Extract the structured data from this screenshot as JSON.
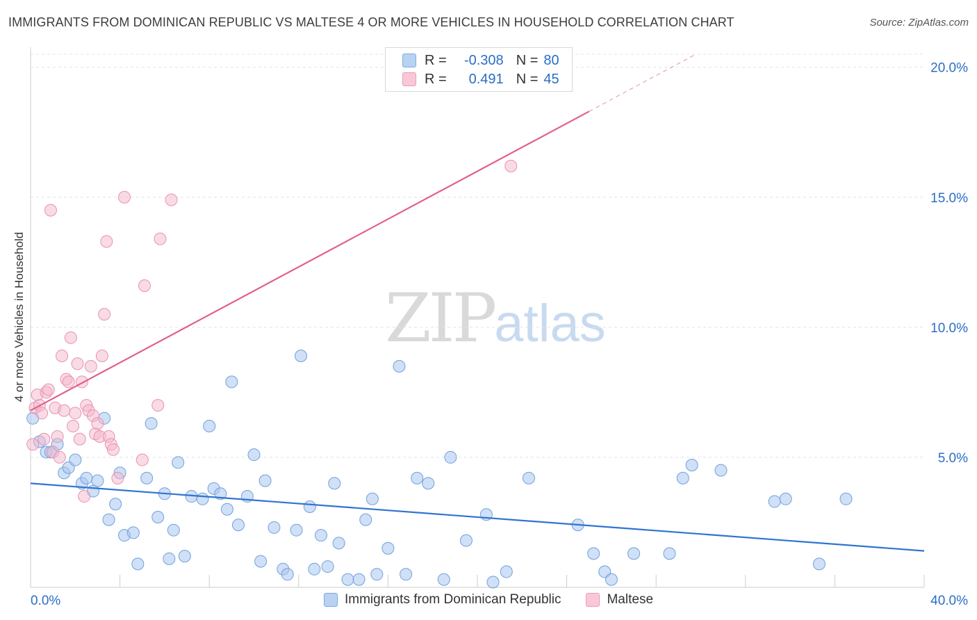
{
  "title": "IMMIGRANTS FROM DOMINICAN REPUBLIC VS MALTESE 4 OR MORE VEHICLES IN HOUSEHOLD CORRELATION CHART",
  "source": "Source: ZipAtlas.com",
  "watermark": {
    "zip": "ZIP",
    "atlas": "atlas"
  },
  "legend": {
    "rows": [
      {
        "r_label": "R =",
        "r_value": "-0.308",
        "n_label": "N =",
        "n_value": "80"
      },
      {
        "r_label": "R =",
        "r_value": "0.491",
        "n_label": "N =",
        "n_value": "45"
      }
    ]
  },
  "colors": {
    "blue_fill": "#a9c7ee",
    "blue_stroke": "#6fa0dd",
    "blue_line": "#2f74d0",
    "pink_fill": "#f4b8cb",
    "pink_stroke": "#e991ae",
    "pink_line": "#e0608a",
    "axis_label": "#2a6ec4",
    "grid": "#e3e3e3"
  },
  "chart_data": {
    "type": "scatter",
    "title": "IMMIGRANTS FROM DOMINICAN REPUBLIC VS MALTESE 4 OR MORE VEHICLES IN HOUSEHOLD CORRELATION CHART",
    "xlabel": "",
    "ylabel": "4 or more Vehicles in Household",
    "xlim": [
      0,
      40
    ],
    "ylim": [
      0,
      20.5
    ],
    "x_tick_labels": [
      {
        "value": 0,
        "label": "0.0%"
      },
      {
        "value": 40,
        "label": "40.0%"
      }
    ],
    "y_tick_labels": [
      {
        "value": 5,
        "label": "5.0%"
      },
      {
        "value": 10,
        "label": "10.0%"
      },
      {
        "value": 15,
        "label": "15.0%"
      },
      {
        "value": 20,
        "label": "20.0%"
      }
    ],
    "grid": true,
    "legend_position": "top-center",
    "series": [
      {
        "name": "Immigrants from Dominican Republic",
        "color": "#a9c7ee",
        "trend": {
          "x": [
            0,
            40
          ],
          "y": [
            4.0,
            1.4
          ]
        },
        "points": [
          [
            0.1,
            6.5
          ],
          [
            0.4,
            5.6
          ],
          [
            0.7,
            5.2
          ],
          [
            0.9,
            5.2
          ],
          [
            1.2,
            5.5
          ],
          [
            1.5,
            4.4
          ],
          [
            1.7,
            4.6
          ],
          [
            2.0,
            4.9
          ],
          [
            2.3,
            4.0
          ],
          [
            2.5,
            4.2
          ],
          [
            2.8,
            3.7
          ],
          [
            3.0,
            4.1
          ],
          [
            3.3,
            6.5
          ],
          [
            3.5,
            2.6
          ],
          [
            3.8,
            3.2
          ],
          [
            4.0,
            4.4
          ],
          [
            4.2,
            2.0
          ],
          [
            4.6,
            2.1
          ],
          [
            4.8,
            0.9
          ],
          [
            5.2,
            4.2
          ],
          [
            5.4,
            6.3
          ],
          [
            5.7,
            2.7
          ],
          [
            6.0,
            3.6
          ],
          [
            6.2,
            1.1
          ],
          [
            6.4,
            2.2
          ],
          [
            6.6,
            4.8
          ],
          [
            6.9,
            1.2
          ],
          [
            7.2,
            3.5
          ],
          [
            7.7,
            3.4
          ],
          [
            8.0,
            6.2
          ],
          [
            8.2,
            3.8
          ],
          [
            8.5,
            3.6
          ],
          [
            8.8,
            3.0
          ],
          [
            9.0,
            7.9
          ],
          [
            9.3,
            2.4
          ],
          [
            9.7,
            3.5
          ],
          [
            10.0,
            5.1
          ],
          [
            10.3,
            1.0
          ],
          [
            10.5,
            4.1
          ],
          [
            10.9,
            2.3
          ],
          [
            11.3,
            0.7
          ],
          [
            11.5,
            0.5
          ],
          [
            11.9,
            2.2
          ],
          [
            12.1,
            8.9
          ],
          [
            12.5,
            3.1
          ],
          [
            12.7,
            0.7
          ],
          [
            13.0,
            2.0
          ],
          [
            13.3,
            0.8
          ],
          [
            13.6,
            4.0
          ],
          [
            13.8,
            1.7
          ],
          [
            14.2,
            0.3
          ],
          [
            14.7,
            0.3
          ],
          [
            15.0,
            2.6
          ],
          [
            15.3,
            3.4
          ],
          [
            15.5,
            0.5
          ],
          [
            16.0,
            1.5
          ],
          [
            16.5,
            8.5
          ],
          [
            16.8,
            0.5
          ],
          [
            17.3,
            4.2
          ],
          [
            17.8,
            4.0
          ],
          [
            18.5,
            0.3
          ],
          [
            18.8,
            5.0
          ],
          [
            19.5,
            1.8
          ],
          [
            20.4,
            2.8
          ],
          [
            20.7,
            0.2
          ],
          [
            21.3,
            0.6
          ],
          [
            22.3,
            4.2
          ],
          [
            24.5,
            2.4
          ],
          [
            25.2,
            1.3
          ],
          [
            25.7,
            0.6
          ],
          [
            26.0,
            0.3
          ],
          [
            27.0,
            1.3
          ],
          [
            28.6,
            1.3
          ],
          [
            29.2,
            4.2
          ],
          [
            29.6,
            4.7
          ],
          [
            30.9,
            4.5
          ],
          [
            33.3,
            3.3
          ],
          [
            33.8,
            3.4
          ],
          [
            35.3,
            0.9
          ],
          [
            36.5,
            3.4
          ]
        ]
      },
      {
        "name": "Maltese",
        "color": "#f4b8cb",
        "trend": {
          "x": [
            0,
            25.0
          ],
          "y": [
            6.8,
            18.3
          ]
        },
        "points": [
          [
            0.1,
            5.5
          ],
          [
            0.2,
            6.9
          ],
          [
            0.3,
            7.4
          ],
          [
            0.4,
            7.0
          ],
          [
            0.5,
            6.7
          ],
          [
            0.6,
            5.7
          ],
          [
            0.7,
            7.5
          ],
          [
            0.8,
            7.6
          ],
          [
            0.9,
            14.5
          ],
          [
            1.0,
            5.2
          ],
          [
            1.1,
            6.9
          ],
          [
            1.2,
            5.8
          ],
          [
            1.3,
            5.0
          ],
          [
            1.4,
            8.9
          ],
          [
            1.5,
            6.8
          ],
          [
            1.6,
            8.0
          ],
          [
            1.7,
            7.9
          ],
          [
            1.8,
            9.6
          ],
          [
            1.9,
            6.2
          ],
          [
            2.0,
            6.7
          ],
          [
            2.1,
            8.6
          ],
          [
            2.2,
            5.7
          ],
          [
            2.3,
            7.9
          ],
          [
            2.4,
            3.5
          ],
          [
            2.5,
            7.0
          ],
          [
            2.6,
            6.8
          ],
          [
            2.7,
            8.5
          ],
          [
            2.8,
            6.6
          ],
          [
            2.9,
            5.9
          ],
          [
            3.0,
            6.3
          ],
          [
            3.1,
            5.8
          ],
          [
            3.2,
            8.9
          ],
          [
            3.3,
            10.5
          ],
          [
            3.4,
            13.3
          ],
          [
            3.5,
            5.8
          ],
          [
            3.6,
            5.5
          ],
          [
            3.7,
            5.3
          ],
          [
            3.9,
            4.2
          ],
          [
            4.2,
            15.0
          ],
          [
            5.0,
            4.9
          ],
          [
            5.1,
            11.6
          ],
          [
            5.7,
            7.0
          ],
          [
            5.8,
            13.4
          ],
          [
            6.3,
            14.9
          ],
          [
            21.5,
            16.2
          ]
        ]
      }
    ]
  },
  "bottom_legend": [
    {
      "label": "Immigrants from Dominican Republic"
    },
    {
      "label": "Maltese"
    }
  ]
}
